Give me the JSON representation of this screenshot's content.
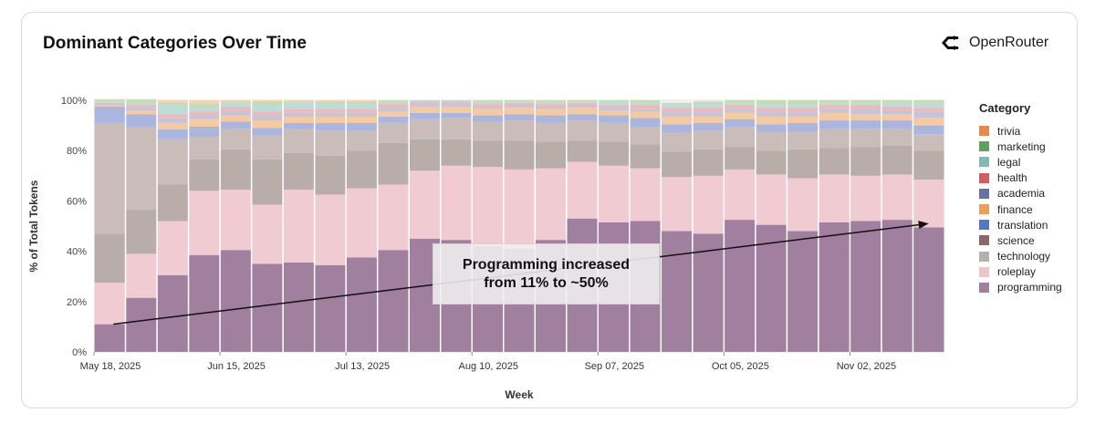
{
  "brand": {
    "name": "OpenRouter"
  },
  "chart_data": {
    "type": "bar",
    "stacked": true,
    "title": "Dominant Categories Over Time",
    "xlabel": "Week",
    "ylabel": "% of Total Tokens",
    "ylim": [
      0,
      100
    ],
    "y_ticks": [
      "0%",
      "20%",
      "40%",
      "60%",
      "80%",
      "100%"
    ],
    "grid": true,
    "legend_title": "Category",
    "legend_position": "right",
    "x_tick_labels": [
      {
        "week": "May 18, 2025",
        "label": "May 18, 2025"
      },
      {
        "week": "Jun 15, 2025",
        "label": "Jun 15, 2025"
      },
      {
        "week": "Jul 13, 2025",
        "label": "Jul 13, 2025"
      },
      {
        "week": "Aug 10, 2025",
        "label": "Aug 10, 2025"
      },
      {
        "week": "Sep 07, 2025",
        "label": "Sep 07, 2025"
      },
      {
        "week": "Oct 05, 2025",
        "label": "Oct 05, 2025"
      },
      {
        "week": "Nov 02, 2025",
        "label": "Nov 02, 2025"
      }
    ],
    "categories": [
      "May 18, 2025",
      "May 25, 2025",
      "Jun 01, 2025",
      "Jun 08, 2025",
      "Jun 15, 2025",
      "Jun 22, 2025",
      "Jun 29, 2025",
      "Jul 06, 2025",
      "Jul 13, 2025",
      "Jul 20, 2025",
      "Jul 27, 2025",
      "Aug 03, 2025",
      "Aug 10, 2025",
      "Aug 17, 2025",
      "Aug 24, 2025",
      "Aug 31, 2025",
      "Sep 07, 2025",
      "Sep 14, 2025",
      "Sep 21, 2025",
      "Sep 28, 2025",
      "Oct 05, 2025",
      "Oct 12, 2025",
      "Oct 19, 2025",
      "Oct 26, 2025",
      "Nov 02, 2025",
      "Nov 09, 2025",
      "Nov 16, 2025"
    ],
    "series": [
      {
        "name": "programming",
        "color": "#a07f9f",
        "values": [
          11.0,
          21.5,
          30.5,
          38.5,
          40.5,
          35.0,
          35.5,
          34.5,
          37.5,
          40.5,
          45.0,
          44.5,
          42.0,
          41.0,
          44.5,
          53.0,
          51.5,
          52.0,
          48.0,
          47.0,
          52.5,
          50.5,
          48.0,
          51.5,
          52.0,
          52.5,
          49.5
        ]
      },
      {
        "name": "roleplay",
        "color": "#f0ccd2",
        "values": [
          16.5,
          17.5,
          21.5,
          25.5,
          24.0,
          23.5,
          29.0,
          28.0,
          27.5,
          26.0,
          27.0,
          29.5,
          31.5,
          31.5,
          28.5,
          22.5,
          22.5,
          21.0,
          21.5,
          23.0,
          20.0,
          20.0,
          21.0,
          19.0,
          18.0,
          18.0,
          19.0
        ]
      },
      {
        "name": "technology",
        "color": "#b8ada9",
        "values": [
          19.5,
          17.5,
          14.5,
          12.5,
          16.0,
          18.0,
          14.5,
          15.5,
          15.0,
          16.5,
          12.5,
          10.5,
          10.5,
          11.5,
          10.5,
          8.5,
          9.5,
          9.5,
          10.0,
          10.5,
          9.0,
          9.5,
          11.5,
          10.5,
          11.5,
          11.5,
          11.5
        ]
      },
      {
        "name": "science",
        "color": "#c9bcb9",
        "values": [
          44.0,
          33.0,
          18.0,
          9.0,
          8.0,
          9.5,
          9.5,
          10.0,
          8.0,
          8.0,
          8.0,
          8.5,
          7.5,
          8.0,
          7.5,
          8.0,
          7.5,
          7.0,
          7.5,
          7.5,
          8.0,
          7.5,
          7.0,
          7.5,
          7.0,
          6.5,
          6.5
        ]
      },
      {
        "name": "translation",
        "color": "#aab5e0",
        "values": [
          6.5,
          5.0,
          4.0,
          4.0,
          3.0,
          3.0,
          2.5,
          3.0,
          3.0,
          2.5,
          2.5,
          2.0,
          2.5,
          2.5,
          3.0,
          2.5,
          3.0,
          3.5,
          3.5,
          3.0,
          3.0,
          3.0,
          3.5,
          3.5,
          3.5,
          3.5,
          3.5
        ]
      },
      {
        "name": "finance",
        "color": "#f6c99e",
        "values": [
          0.5,
          1.5,
          2.5,
          3.0,
          2.5,
          3.0,
          2.5,
          2.5,
          2.5,
          2.0,
          2.5,
          2.5,
          2.5,
          2.5,
          2.5,
          2.5,
          2.0,
          2.5,
          3.0,
          2.5,
          2.5,
          3.0,
          2.5,
          3.0,
          2.5,
          2.5,
          3.0
        ]
      },
      {
        "name": "academia",
        "color": "#c4c4dc",
        "values": [
          0.5,
          1.0,
          2.0,
          1.5,
          2.0,
          2.0,
          1.5,
          1.5,
          1.5,
          1.5,
          1.0,
          1.0,
          1.0,
          1.0,
          1.0,
          1.0,
          1.0,
          1.0,
          2.0,
          2.0,
          1.5,
          2.0,
          2.0,
          1.5,
          2.0,
          1.5,
          2.5
        ]
      },
      {
        "name": "health",
        "color": "#f0b8b8",
        "values": [
          0.5,
          1.0,
          1.5,
          1.5,
          1.5,
          1.5,
          1.5,
          1.5,
          1.5,
          1.5,
          1.0,
          1.0,
          1.0,
          1.0,
          1.0,
          1.0,
          1.0,
          1.5,
          1.5,
          1.5,
          1.5,
          1.5,
          1.5,
          1.5,
          1.5,
          1.5,
          1.5
        ]
      },
      {
        "name": "legal",
        "color": "#bcdcda",
        "values": [
          0.5,
          1.0,
          3.5,
          1.5,
          1.5,
          2.5,
          2.5,
          2.0,
          2.0,
          1.0,
          0.5,
          0.5,
          1.0,
          0.5,
          1.0,
          0.5,
          1.5,
          1.0,
          1.5,
          1.5,
          1.0,
          1.5,
          1.5,
          1.0,
          1.0,
          1.5,
          2.0
        ]
      },
      {
        "name": "marketing",
        "color": "#c4dcb0",
        "values": [
          0.5,
          1.0,
          1.0,
          1.5,
          0.5,
          1.5,
          0.5,
          1.0,
          1.0,
          0.5,
          0.0,
          0.0,
          0.5,
          0.5,
          0.5,
          0.5,
          0.5,
          1.0,
          0.5,
          1.0,
          1.0,
          1.5,
          1.5,
          1.0,
          1.0,
          1.0,
          1.0
        ]
      },
      {
        "name": "trivia",
        "color": "#f2d2b4",
        "values": [
          0.5,
          0.5,
          1.0,
          1.5,
          0.5,
          0.5,
          0.5,
          0.5,
          0.5,
          0.0,
          0.0,
          0.0,
          0.0,
          0.0,
          0.0,
          0.0,
          0.0,
          0.0,
          0.0,
          0.0,
          0.0,
          0.0,
          0.0,
          0.0,
          0.0,
          0.0,
          0.0
        ]
      }
    ],
    "legend": [
      {
        "name": "trivia",
        "color": "#e8894a"
      },
      {
        "name": "marketing",
        "color": "#5aa55a"
      },
      {
        "name": "legal",
        "color": "#85b8b3"
      },
      {
        "name": "health",
        "color": "#d45c5c"
      },
      {
        "name": "academia",
        "color": "#6872a8"
      },
      {
        "name": "finance",
        "color": "#ec9f56"
      },
      {
        "name": "translation",
        "color": "#4f79c8"
      },
      {
        "name": "science",
        "color": "#8a6b64"
      },
      {
        "name": "technology",
        "color": "#b4b0ad"
      },
      {
        "name": "roleplay",
        "color": "#efc5cb"
      },
      {
        "name": "programming",
        "color": "#a07f9f"
      }
    ],
    "annotation": {
      "lines": [
        "Programming increased",
        "from 11% to ~50%"
      ],
      "arrow_from": {
        "week": "May 18, 2025",
        "y": 11
      },
      "arrow_to": {
        "week": "Nov 16, 2025",
        "y": 51
      }
    }
  }
}
